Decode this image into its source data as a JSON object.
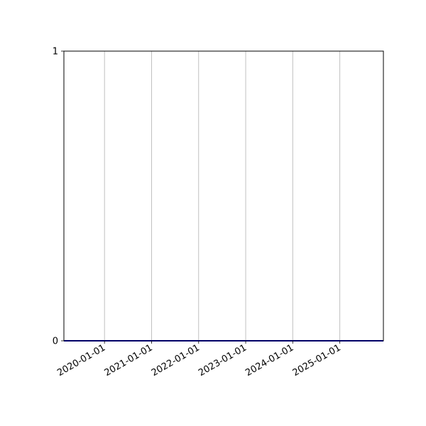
{
  "chart_data": {
    "type": "line",
    "title": "",
    "xlabel": "",
    "ylabel": "",
    "xlim": [
      "2019-02-20",
      "2025-12-05"
    ],
    "ylim": [
      0,
      1
    ],
    "x_ticks": [
      "2020-01-01",
      "2021-01-01",
      "2022-01-01",
      "2023-01-01",
      "2024-01-01",
      "2025-01-01"
    ],
    "y_ticks": [
      "0",
      "1"
    ],
    "grid": "x-axis vertical gridlines",
    "series": [
      {
        "x": [
          "2019-02-20",
          "2025-12-05"
        ],
        "y": [
          0,
          0
        ],
        "color": "#0000cc"
      }
    ],
    "colors": {
      "grid": "#b0b0b0",
      "axes": "#000000"
    }
  }
}
